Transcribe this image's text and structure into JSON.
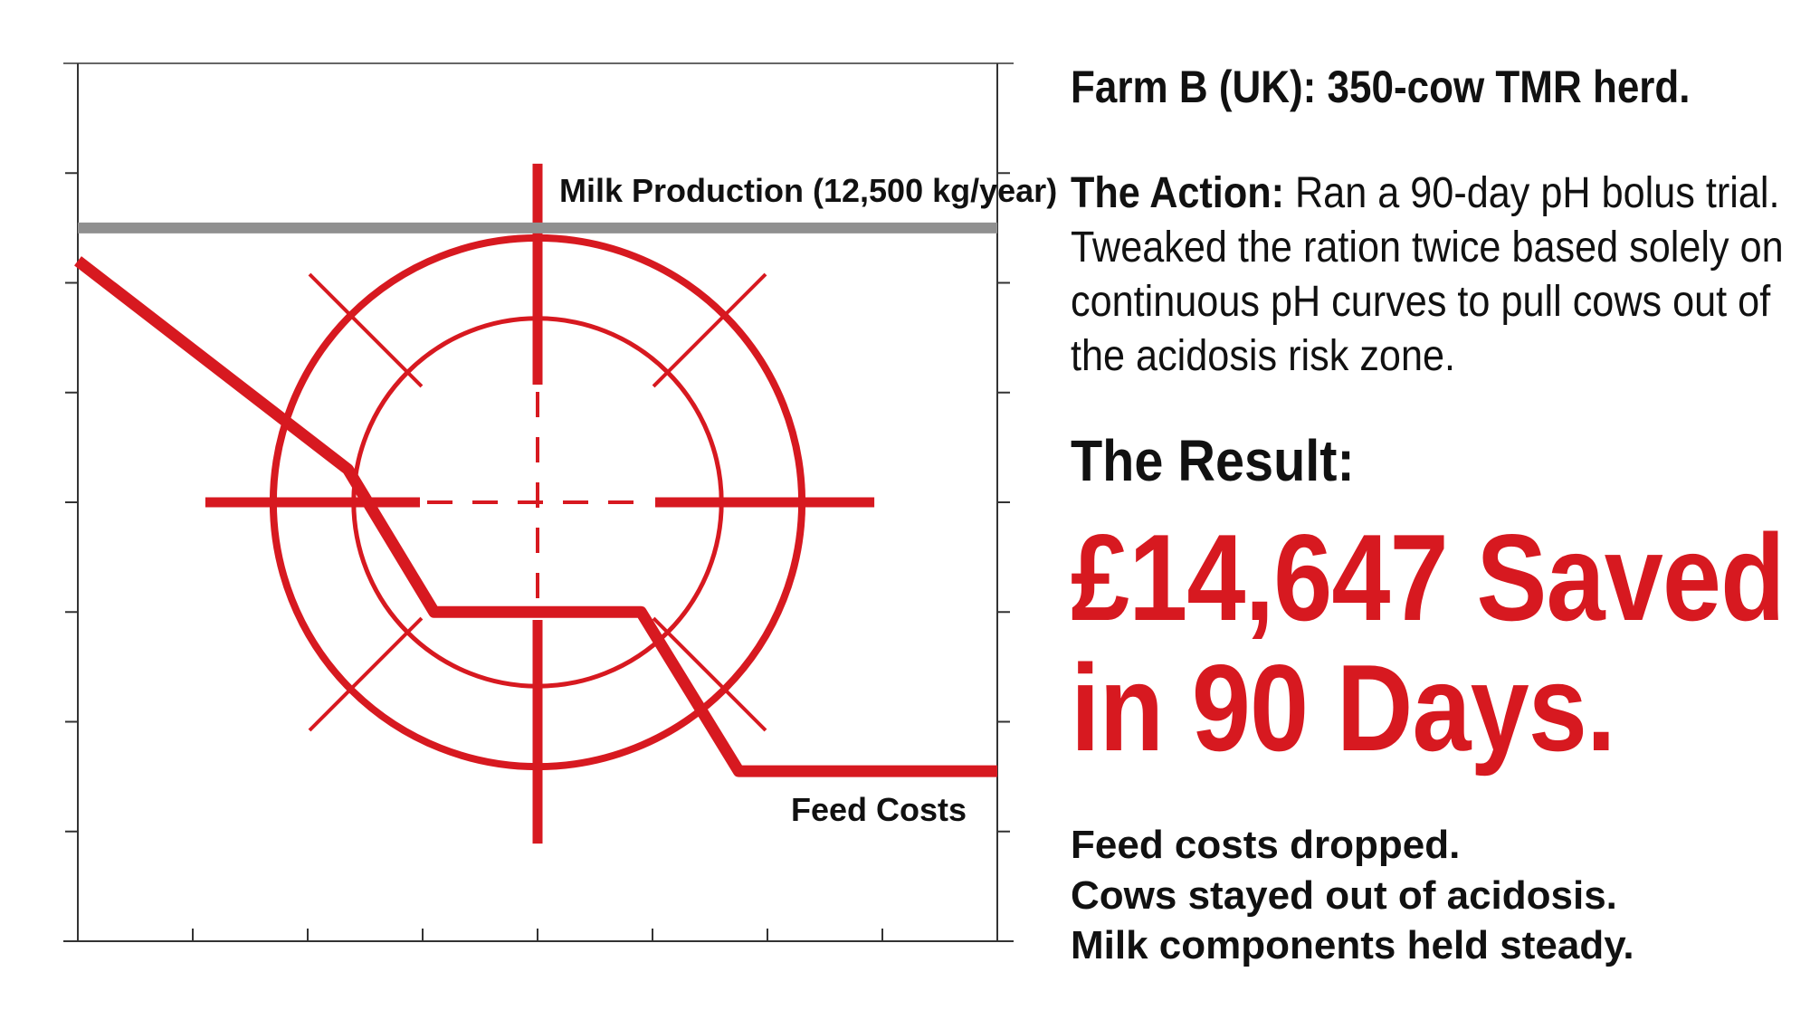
{
  "chart_data": {
    "type": "line",
    "title": "",
    "xlabel": "",
    "ylabel": "",
    "grid": false,
    "xlim": [
      0,
      8
    ],
    "ylim": [
      0,
      8
    ],
    "series": [
      {
        "name": "Milk Production (12,500 kg/year)",
        "color": "#909090",
        "x": [
          0,
          8
        ],
        "y": [
          6.5,
          6.5
        ]
      },
      {
        "name": "Feed Costs",
        "color": "#d71920",
        "x": [
          0,
          2.35,
          3.1,
          4.9,
          5.75,
          8
        ],
        "y": [
          6.2,
          4.3,
          3.0,
          3.0,
          1.55,
          1.55
        ]
      }
    ],
    "annotation": {
      "type": "target-reticle",
      "color": "#d71920",
      "center": [
        4,
        4
      ],
      "ring_radii": [
        2.3,
        1.6
      ]
    }
  },
  "text": {
    "farm_title": "Farm B (UK): 350-cow TMR herd.",
    "action_label": "The Action:",
    "action_text": " Ran a 90-day pH bolus trial. Tweaked the ration twice based solely on continuous pH curves to pull cows out of the acidosis risk zone.",
    "result_label": "The Result:",
    "headline": "£14,647 Saved in 90 Days.",
    "summary": [
      "Feed costs dropped.",
      "Cows stayed out of acidosis.",
      "Milk components held steady."
    ]
  },
  "colors": {
    "accent": "#d71920",
    "milk_line": "#909090",
    "text": "#111111"
  }
}
